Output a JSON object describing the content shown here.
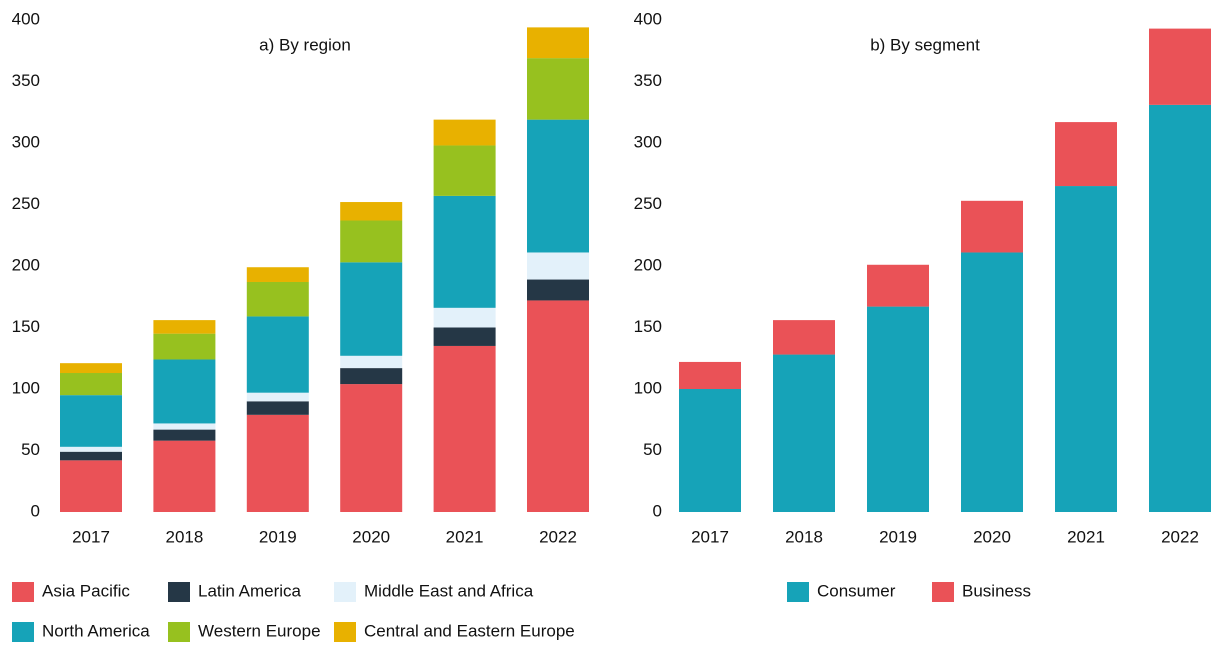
{
  "chart_data": [
    {
      "type": "stacked_bar",
      "title": "a) By region",
      "categories": [
        "2017",
        "2018",
        "2019",
        "2020",
        "2021",
        "2022"
      ],
      "series": [
        {
          "name": "Asia Pacific",
          "color": "#ea5257",
          "values": [
            42,
            58,
            79,
            104,
            135,
            172
          ]
        },
        {
          "name": "Latin America",
          "color": "#253746",
          "values": [
            7,
            9,
            11,
            13,
            15,
            17
          ]
        },
        {
          "name": "Middle East and Africa",
          "color": "#e3f1fa",
          "values": [
            4,
            5,
            7,
            10,
            16,
            22
          ]
        },
        {
          "name": "North America",
          "color": "#16a3b8",
          "values": [
            42,
            52,
            62,
            76,
            91,
            108
          ]
        },
        {
          "name": "Western Europe",
          "color": "#97c11f",
          "values": [
            18,
            21,
            28,
            34,
            41,
            50
          ]
        },
        {
          "name": "Central and Eastern Europe",
          "color": "#e8b100",
          "values": [
            8,
            11,
            12,
            15,
            21,
            25
          ]
        }
      ],
      "ylim": [
        0,
        400
      ],
      "yticks": [
        0,
        50,
        100,
        150,
        200,
        250,
        300,
        350,
        400
      ],
      "grid": false
    },
    {
      "type": "stacked_bar",
      "title": "b) By segment",
      "categories": [
        "2017",
        "2018",
        "2019",
        "2020",
        "2021",
        "2022"
      ],
      "series": [
        {
          "name": "Consumer",
          "color": "#16a3b8",
          "values": [
            100,
            128,
            167,
            211,
            265,
            331
          ]
        },
        {
          "name": "Business",
          "color": "#ea5257",
          "values": [
            22,
            28,
            34,
            42,
            52,
            62
          ]
        }
      ],
      "ylim": [
        0,
        400
      ],
      "yticks": [
        0,
        50,
        100,
        150,
        200,
        250,
        300,
        350,
        400
      ],
      "grid": false
    }
  ]
}
